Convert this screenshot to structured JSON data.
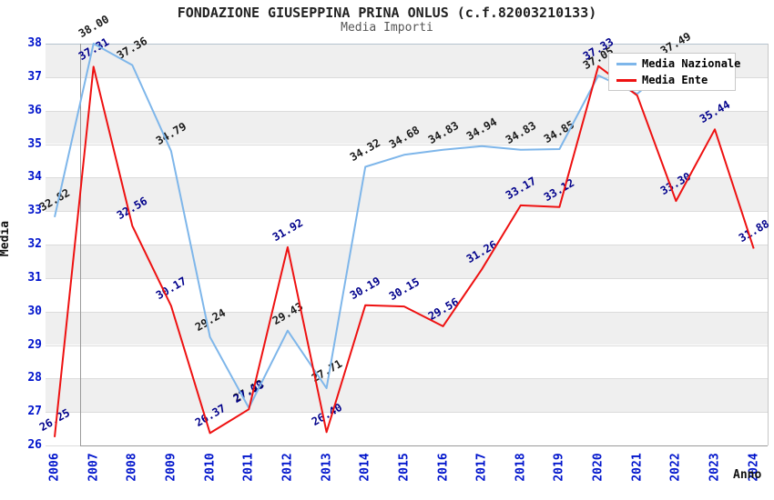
{
  "title": "FONDAZIONE GIUSEPPINA PRINA ONLUS (c.f.82003210133)",
  "subtitle": "Media Importi",
  "y_axis_title": "Media",
  "x_axis_title": "Anno",
  "axis": {
    "y_ticks": [
      38,
      37,
      36,
      35,
      34,
      33,
      32,
      31,
      30,
      29,
      28,
      27,
      26
    ],
    "x_ticks": [
      "2006",
      "2007",
      "2008",
      "2009",
      "2010",
      "2011",
      "2012",
      "2013",
      "2014",
      "2015",
      "2016",
      "2017",
      "2018",
      "2019",
      "2020",
      "2021",
      "2022",
      "2023",
      "2024"
    ],
    "tick_color": "#0014cc",
    "band_color": "#efefef",
    "gridline_color": "#dbdbdb"
  },
  "legend": {
    "position": "top-right",
    "items": [
      {
        "label": "Media Nazionale",
        "color": "#7eb6ea"
      },
      {
        "label": "Media Ente",
        "color": "#ee1111"
      }
    ]
  },
  "chart_data": {
    "type": "line",
    "title": "FONDAZIONE GIUSEPPINA PRINA ONLUS (c.f.82003210133)",
    "subtitle": "Media Importi",
    "xlabel": "Anno",
    "ylabel": "Media",
    "ylim": [
      26,
      38
    ],
    "x": [
      2006,
      2007,
      2008,
      2009,
      2010,
      2011,
      2012,
      2013,
      2014,
      2015,
      2016,
      2017,
      2018,
      2019,
      2020,
      2021,
      2022,
      2023,
      2024
    ],
    "grid": "horizontal alternating bands gray/white",
    "legend_position": "top-right",
    "series": [
      {
        "name": "Media Nazionale",
        "color": "#7eb6ea",
        "label_color": "#1a1a1a",
        "values": [
          32.82,
          38.0,
          37.36,
          34.79,
          29.24,
          27.12,
          29.43,
          27.71,
          34.32,
          34.68,
          34.83,
          34.94,
          34.83,
          34.85,
          37.05,
          36.5,
          37.49,
          null,
          null
        ]
      },
      {
        "name": "Media Ente",
        "color": "#ee1111",
        "label_color": "#00008b",
        "values": [
          26.25,
          37.31,
          32.56,
          30.17,
          26.37,
          27.08,
          31.92,
          26.4,
          30.19,
          30.15,
          29.56,
          31.26,
          33.17,
          33.12,
          37.33,
          36.45,
          33.3,
          35.44,
          31.88
        ]
      }
    ]
  }
}
